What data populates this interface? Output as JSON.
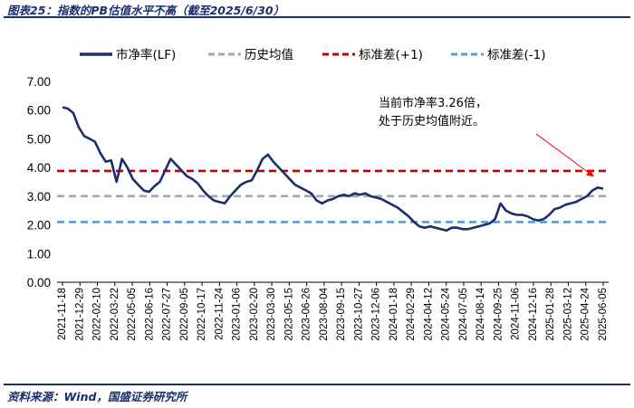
{
  "header": {
    "title": "图表25：指数的PB估值水平不高（截至2025/6/30）"
  },
  "footer": {
    "source": "资料来源：Wind，国盛证券研究所"
  },
  "chart_data": {
    "type": "line",
    "title": "图表25：指数的PB估值水平不高（截至2025/6/30）",
    "ylim": [
      0,
      7
    ],
    "yticks": [
      "0.00",
      "1.00",
      "2.00",
      "3.00",
      "4.00",
      "5.00",
      "6.00",
      "7.00"
    ],
    "grid": false,
    "legend_position": "top",
    "legend": [
      {
        "key": "pb",
        "label": "市净率(LF)",
        "color": "#1a2f6b",
        "style": "solid"
      },
      {
        "key": "mean",
        "label": "历史均值",
        "color": "#a6a6a6",
        "style": "dashed"
      },
      {
        "key": "plus1",
        "label": "标准差(+1)",
        "color": "#c00000",
        "style": "dashed"
      },
      {
        "key": "minus1",
        "label": "标准差(-1)",
        "color": "#5b9bd5",
        "style": "dashed"
      }
    ],
    "x_tick_labels": [
      "2021-11-18",
      "2021-12-29",
      "2022-02-10",
      "2022-03-22",
      "2022-05-05",
      "2022-06-16",
      "2022-07-27",
      "2022-09-05",
      "2022-10-17",
      "2022-11-24",
      "2023-01-06",
      "2023-02-20",
      "2023-03-30",
      "2023-05-15",
      "2023-06-26",
      "2023-08-04",
      "2023-09-15",
      "2023-10-27",
      "2023-12-06",
      "2024-01-18",
      "2024-02-29",
      "2024-04-12",
      "2024-05-24",
      "2024-07-05",
      "2024-08-14",
      "2024-09-25",
      "2024-11-06",
      "2024-12-16",
      "2025-01-28",
      "2025-03-12",
      "2025-04-24",
      "2025-06-05"
    ],
    "reference_lines": {
      "mean": 3.0,
      "plus1": 3.88,
      "minus1": 2.1
    },
    "series": [
      {
        "name": "市净率(LF)",
        "x_start": "2021-11-18",
        "x_end": "2025-06-30",
        "values": [
          6.1,
          6.05,
          5.9,
          5.4,
          5.1,
          5.0,
          4.9,
          4.5,
          4.2,
          4.25,
          3.5,
          4.3,
          4.0,
          3.6,
          3.4,
          3.2,
          3.15,
          3.35,
          3.5,
          3.9,
          4.3,
          4.1,
          3.9,
          3.7,
          3.6,
          3.45,
          3.2,
          3.0,
          2.85,
          2.8,
          2.75,
          3.0,
          3.2,
          3.4,
          3.5,
          3.55,
          3.9,
          4.3,
          4.45,
          4.2,
          4.0,
          3.8,
          3.6,
          3.4,
          3.3,
          3.2,
          3.1,
          2.85,
          2.75,
          2.85,
          2.9,
          3.0,
          3.05,
          3.0,
          3.1,
          3.05,
          3.1,
          3.0,
          2.95,
          2.9,
          2.8,
          2.7,
          2.6,
          2.45,
          2.3,
          2.1,
          1.95,
          1.9,
          1.95,
          1.9,
          1.85,
          1.8,
          1.9,
          1.9,
          1.85,
          1.85,
          1.9,
          1.95,
          2.0,
          2.05,
          2.2,
          2.75,
          2.5,
          2.4,
          2.35,
          2.35,
          2.3,
          2.2,
          2.15,
          2.2,
          2.35,
          2.55,
          2.6,
          2.7,
          2.75,
          2.8,
          2.9,
          3.0,
          3.2,
          3.3,
          3.26
        ]
      }
    ],
    "annotation": {
      "text_lines": [
        "当前市净率3.26倍，",
        "处于历史均值附近。"
      ],
      "points_to": {
        "x": "2025-06-30",
        "y": 3.26
      }
    }
  }
}
